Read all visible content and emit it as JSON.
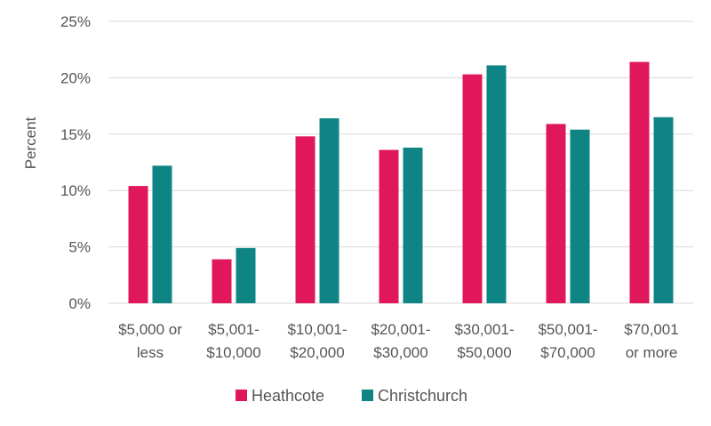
{
  "chart_data": {
    "type": "bar",
    "title": "",
    "xlabel": "",
    "ylabel": "Percent",
    "ylim": [
      0,
      25
    ],
    "y_ticks": [
      "0%",
      "5%",
      "10%",
      "15%",
      "20%",
      "25%"
    ],
    "y_tick_values": [
      0,
      5,
      10,
      15,
      20,
      25
    ],
    "grid": true,
    "legend_position": "bottom",
    "categories": [
      [
        "$5,000 or",
        "less"
      ],
      [
        "$5,001-",
        "$10,000"
      ],
      [
        "$10,001-",
        "$20,000"
      ],
      [
        "$20,001-",
        "$30,000"
      ],
      [
        "$30,001-",
        "$50,000"
      ],
      [
        "$50,001-",
        "$70,000"
      ],
      [
        "$70,001",
        "or more"
      ]
    ],
    "series": [
      {
        "name": "Heathcote",
        "color": "#e0175b",
        "values": [
          10.4,
          3.9,
          14.8,
          13.6,
          20.3,
          15.9,
          21.4
        ]
      },
      {
        "name": "Christchurch",
        "color": "#0e8584",
        "values": [
          12.2,
          4.9,
          16.4,
          13.8,
          21.1,
          15.4,
          16.5
        ]
      }
    ]
  }
}
